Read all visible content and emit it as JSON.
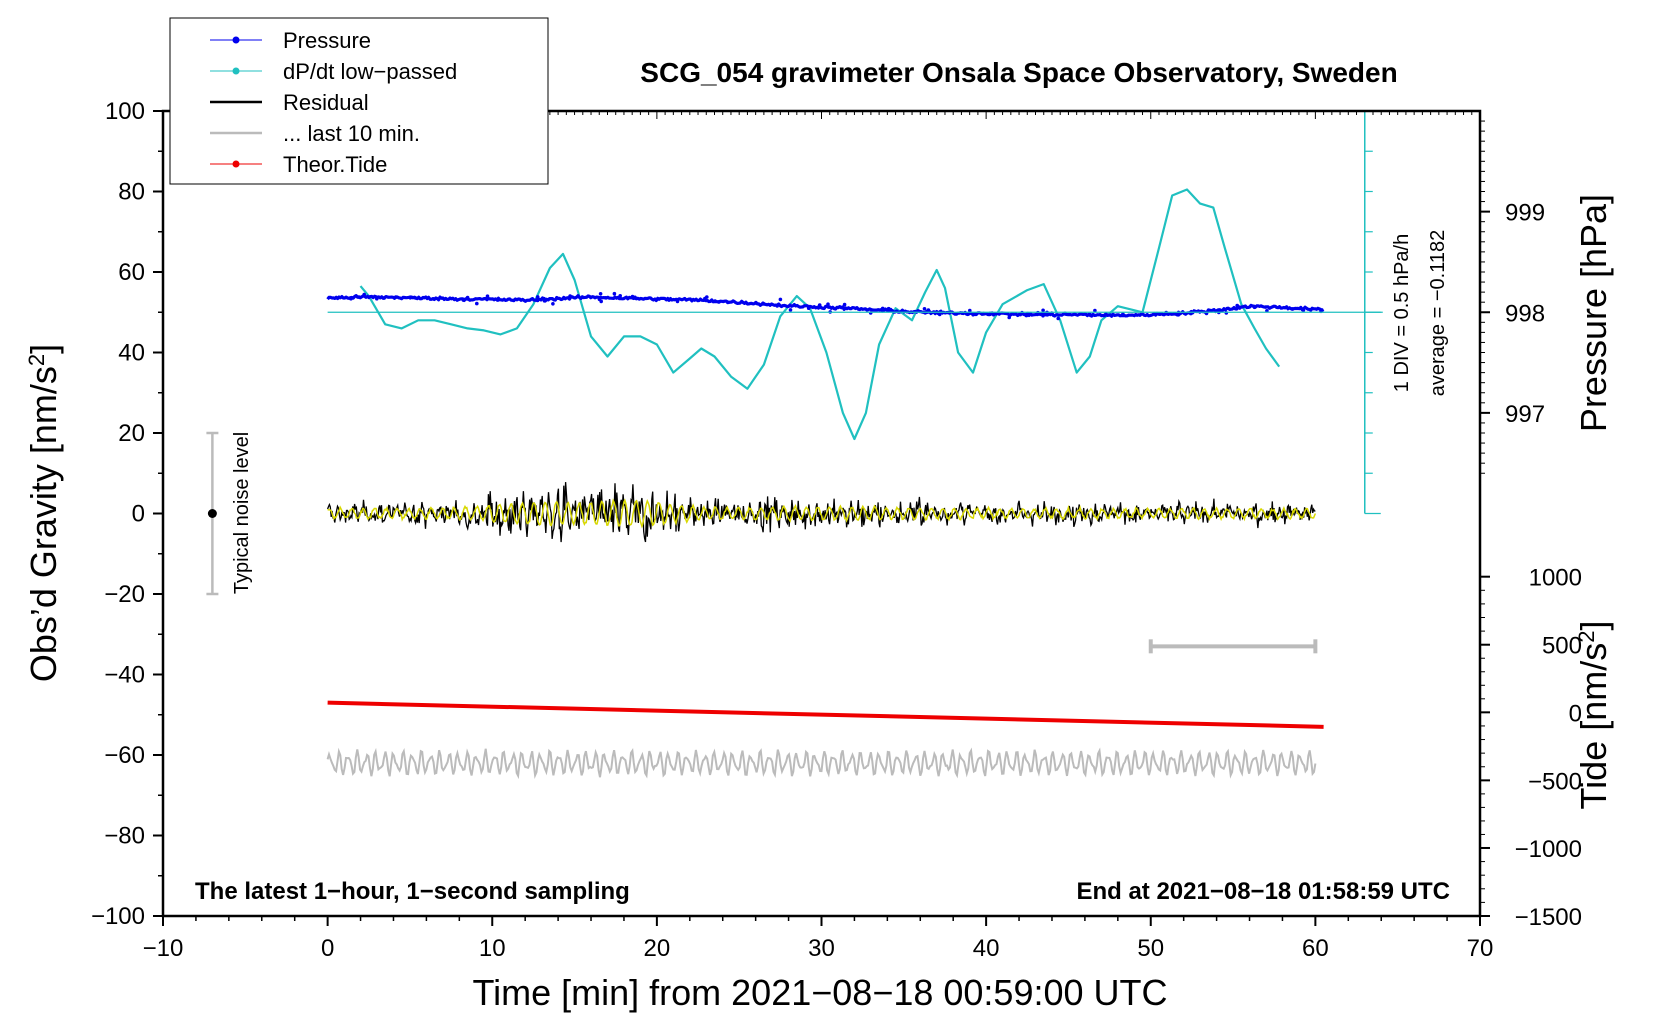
{
  "chart_data": {
    "type": "line",
    "title": "SCG_054 gravimeter Onsala Space Observatory, Sweden",
    "xlabel": "Time [min] from 2021−08−18 00:59:00 UTC",
    "ylabel": "Obs’d Gravity [nm/s",
    "ylabel_sup": "2",
    "ylabel_end": "]",
    "pressure_label": "Pressure [hPa]",
    "tide_label": "Tide [nm/s",
    "tide_sup": "2",
    "tide_end": "]",
    "xlim": [
      -10,
      70
    ],
    "ylim": [
      -100,
      100
    ],
    "x_ticks": [
      -10,
      0,
      10,
      20,
      30,
      40,
      50,
      60,
      70
    ],
    "x_tick_labels": [
      "−10",
      "0",
      "10",
      "20",
      "30",
      "40",
      "50",
      "60",
      "70"
    ],
    "y_ticks": [
      -100,
      -80,
      -60,
      -40,
      -20,
      0,
      20,
      40,
      60,
      80,
      100
    ],
    "y_tick_labels": [
      "−100",
      "−80",
      "−60",
      "−40",
      "−20",
      "0",
      "20",
      "40",
      "60",
      "80",
      "100"
    ],
    "pressure_axis": {
      "ticks": [
        997,
        998,
        999
      ],
      "tick_labels": [
        "997",
        "998",
        "999"
      ],
      "gravity_at": [
        25,
        50,
        75
      ]
    },
    "tide_axis": {
      "ticks": [
        -1500,
        -1000,
        -500,
        0,
        500,
        1000
      ],
      "tick_labels": [
        "−1500",
        "−1000",
        "−500",
        "0",
        "500",
        "1000"
      ],
      "gravity_at": [
        -100,
        -83.1,
        -66.3,
        -49.4,
        -32.6,
        -15.7
      ]
    },
    "dpdt_scale": {
      "label1": "1 DIV = 0.5 hPa/h",
      "label2": "average = −0.1182",
      "x": 63,
      "y_range": [
        0,
        100
      ],
      "baseline": 50
    },
    "noise_bar": {
      "label": "Typical noise level",
      "x": -7,
      "y_range": [
        -20,
        20
      ],
      "center": 0
    },
    "last10_bar": {
      "x_range": [
        50,
        60
      ],
      "y": -33
    },
    "series": [
      {
        "name": "Pressure",
        "color": "#0000ee",
        "x": [
          0,
          2,
          4,
          6,
          8,
          10,
          12,
          14,
          16,
          18,
          20,
          22,
          24,
          26,
          28,
          30,
          32,
          34,
          36,
          38,
          40,
          42,
          44,
          46,
          48,
          50,
          52,
          54,
          56,
          58,
          60.5
        ],
        "y": [
          53.5,
          53.8,
          53.7,
          53.5,
          53.3,
          53.2,
          53.0,
          53.4,
          53.8,
          53.5,
          53.3,
          53.1,
          52.7,
          52.2,
          51.6,
          51.3,
          50.9,
          50.4,
          50.0,
          49.8,
          49.7,
          49.5,
          49.4,
          49.4,
          49.2,
          49.4,
          49.8,
          50.5,
          51.5,
          51.2,
          50.6
        ]
      },
      {
        "name": "dP/dt low−passed",
        "color": "#20c0c0",
        "x": [
          2.0,
          2.5,
          3.5,
          4.5,
          5.5,
          6.5,
          7.5,
          8.5,
          9.5,
          10.5,
          11.5,
          12.5,
          13.5,
          14.3,
          15.0,
          16.0,
          17.0,
          18.0,
          19.0,
          20.0,
          21.0,
          22.0,
          22.7,
          23.5,
          24.5,
          25.5,
          26.5,
          27.5,
          28.5,
          29.3,
          30.3,
          31.3,
          32.0,
          32.7,
          33.5,
          34.5,
          35.5,
          36.3,
          37.0,
          37.5,
          38.3,
          39.2,
          40.0,
          41.0,
          42.5,
          43.5,
          44.5,
          45.5,
          46.3,
          47.0,
          48.0,
          49.5,
          50.5,
          51.3,
          52.2,
          53.0,
          53.8,
          54.5,
          55.5,
          56.3,
          57.0,
          57.8
        ],
        "y": [
          56.5,
          54,
          47,
          46,
          48,
          48,
          47,
          46,
          45.5,
          44.5,
          46,
          52,
          61,
          64.5,
          58,
          44,
          39,
          44,
          44,
          42,
          35,
          38.5,
          41,
          39,
          34,
          31,
          37,
          49,
          54,
          51,
          40,
          25,
          18.5,
          25,
          42,
          51,
          48,
          55,
          60.5,
          56,
          40,
          35,
          45,
          52,
          55.5,
          57,
          48,
          35,
          39,
          48,
          51.5,
          50,
          66,
          79,
          80.5,
          77,
          76,
          66,
          52,
          46,
          41,
          36.5
        ]
      },
      {
        "name": "Residual",
        "color": "#000000",
        "x": [
          0,
          60
        ],
        "y": [
          0,
          0
        ]
      },
      {
        "name": "... last 10 min.",
        "color": "#bbbbbb",
        "x": [
          0,
          60
        ],
        "y": [
          -62,
          -62
        ]
      },
      {
        "name": "Theor.Tide",
        "color": "#ee0000",
        "x": [
          0,
          60.5
        ],
        "y": [
          -47,
          -53
        ]
      }
    ]
  },
  "annotations": {
    "left_footer": "The latest 1−hour, 1−second sampling",
    "right_footer": "End at 2021−08−18 01:58:59 UTC"
  },
  "legend": {
    "placement": "top-left",
    "items": [
      {
        "label": "Pressure",
        "color": "#0000ee",
        "marker": true
      },
      {
        "label": "dP/dt low−passed",
        "color": "#20c0c0",
        "marker": true
      },
      {
        "label": "Residual",
        "color": "#000000",
        "marker": false
      },
      {
        "label": "... last 10 min.",
        "color": "#bbbbbb",
        "marker": false
      },
      {
        "label": "Theor.Tide",
        "color": "#ee0000",
        "marker": true
      }
    ]
  }
}
